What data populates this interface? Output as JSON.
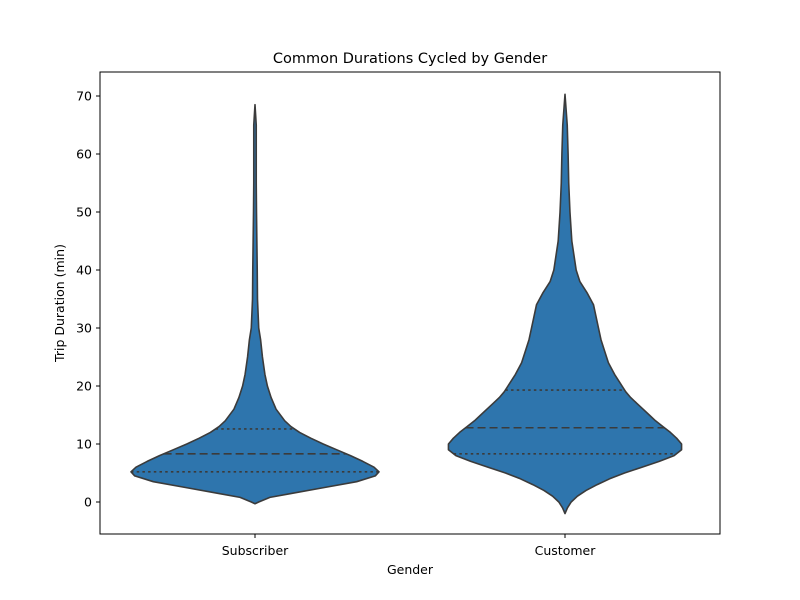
{
  "chart_data": {
    "type": "violin",
    "title": "Common Durations Cycled by Gender",
    "xlabel": "Gender",
    "ylabel": "Trip Duration (min)",
    "ylim": [
      -5,
      74
    ],
    "yticks": [
      0,
      10,
      20,
      30,
      40,
      50,
      60,
      70
    ],
    "grid": false,
    "fill_color": "#2e75ad",
    "line_color": "#3b3b3b",
    "categories": [
      "Subscriber",
      "Customer"
    ],
    "violins": [
      {
        "category": "Subscriber",
        "q1": 5.2,
        "median": 8.3,
        "q3": 12.6,
        "profile": [
          [
            -0.3,
            0.0
          ],
          [
            0,
            0.03
          ],
          [
            0.8,
            0.12
          ],
          [
            1.5,
            0.3
          ],
          [
            2.5,
            0.56
          ],
          [
            3.5,
            0.82
          ],
          [
            4.5,
            0.97
          ],
          [
            5.2,
            1.0
          ],
          [
            6,
            0.96
          ],
          [
            7,
            0.87
          ],
          [
            8,
            0.77
          ],
          [
            9,
            0.66
          ],
          [
            10,
            0.55
          ],
          [
            11,
            0.45
          ],
          [
            12,
            0.36
          ],
          [
            13,
            0.29
          ],
          [
            14,
            0.24
          ],
          [
            16,
            0.17
          ],
          [
            18,
            0.13
          ],
          [
            20,
            0.1
          ],
          [
            22,
            0.08
          ],
          [
            25,
            0.06
          ],
          [
            28,
            0.045
          ],
          [
            30,
            0.03
          ],
          [
            35,
            0.02
          ],
          [
            40,
            0.018
          ],
          [
            45,
            0.015
          ],
          [
            50,
            0.012
          ],
          [
            55,
            0.01
          ],
          [
            60,
            0.01
          ],
          [
            65,
            0.01
          ],
          [
            68.5,
            0.0
          ]
        ]
      },
      {
        "category": "Customer",
        "q1": 8.3,
        "median": 12.8,
        "q3": 19.3,
        "profile": [
          [
            -2,
            0.0
          ],
          [
            -1,
            0.02
          ],
          [
            0,
            0.05
          ],
          [
            1,
            0.1
          ],
          [
            2,
            0.17
          ],
          [
            3,
            0.26
          ],
          [
            4,
            0.36
          ],
          [
            5,
            0.48
          ],
          [
            6,
            0.62
          ],
          [
            7,
            0.76
          ],
          [
            8,
            0.88
          ],
          [
            9,
            0.94
          ],
          [
            10,
            0.94
          ],
          [
            11,
            0.9
          ],
          [
            12,
            0.85
          ],
          [
            13,
            0.79
          ],
          [
            14,
            0.73
          ],
          [
            15,
            0.68
          ],
          [
            16,
            0.63
          ],
          [
            17,
            0.58
          ],
          [
            18,
            0.53
          ],
          [
            19,
            0.49
          ],
          [
            20,
            0.46
          ],
          [
            22,
            0.4
          ],
          [
            24,
            0.35
          ],
          [
            26,
            0.32
          ],
          [
            28,
            0.29
          ],
          [
            30,
            0.27
          ],
          [
            32,
            0.25
          ],
          [
            34,
            0.23
          ],
          [
            36,
            0.18
          ],
          [
            38,
            0.12
          ],
          [
            40,
            0.09
          ],
          [
            45,
            0.055
          ],
          [
            50,
            0.04
          ],
          [
            55,
            0.03
          ],
          [
            60,
            0.025
          ],
          [
            65,
            0.018
          ],
          [
            70.3,
            0.0
          ]
        ]
      }
    ]
  }
}
